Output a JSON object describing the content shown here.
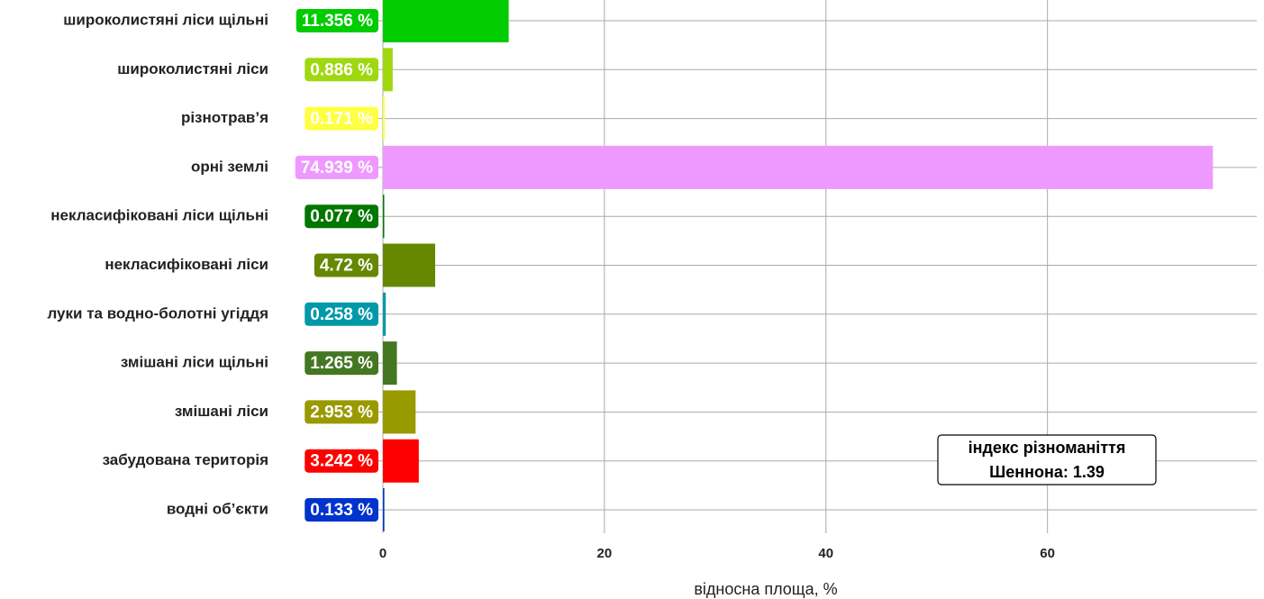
{
  "chart_data": {
    "type": "barh",
    "categories": [
      "широколистяні ліси щільні",
      "широколистяні ліси",
      "різнотрав’я",
      "орні землі",
      "некласифіковані ліси щільні",
      "некласифіковані ліси",
      "луки та водно-болотні угіддя",
      "змішані ліси щільні",
      "змішані ліси",
      "забудована територія",
      "водні об’єкти"
    ],
    "values": [
      11.356,
      0.886,
      0.171,
      74.939,
      0.077,
      4.72,
      0.258,
      1.265,
      2.953,
      3.242,
      0.133
    ],
    "value_labels": [
      "11.356 %",
      "0.886 %",
      "0.171 %",
      "74.939 %",
      "0.077 %",
      "4.72 %",
      "0.258 %",
      "1.265 %",
      "2.953 %",
      "3.242 %",
      "0.133 %"
    ],
    "colors": [
      "#00cc00",
      "#a0d810",
      "#ffff44",
      "#ee99ff",
      "#007700",
      "#668800",
      "#0099a8",
      "#447722",
      "#999900",
      "#ff0000",
      "#0033cc"
    ],
    "xlabel": "відносна площа, %",
    "xlim": [
      0,
      78.9
    ],
    "xticks": [
      0,
      20,
      40,
      60
    ],
    "grid": true,
    "annotation": [
      "індекс різноманіття",
      "Шеннона:  1.39"
    ]
  }
}
